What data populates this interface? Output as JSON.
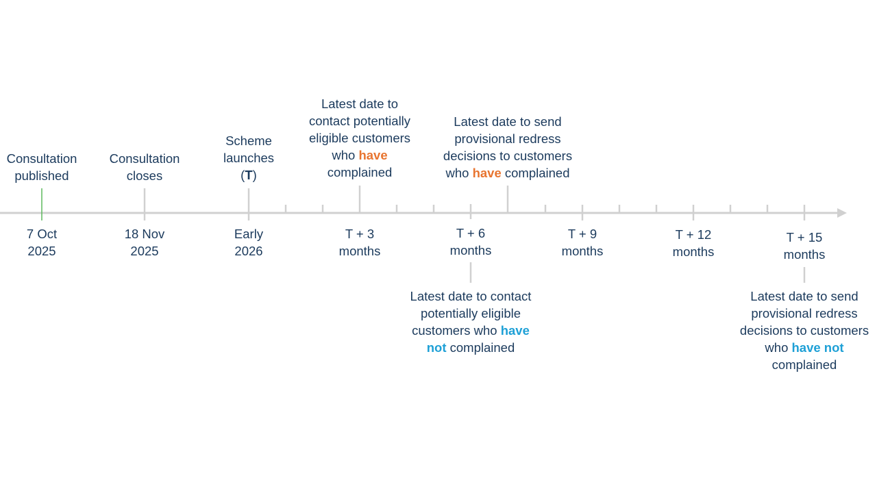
{
  "colors": {
    "text": "#1b3a5c",
    "axis": "#d0d0d0",
    "first_marker": "#5cb85c",
    "have": "#e8742f",
    "have_not": "#1ea0d6"
  },
  "timeline": [
    {
      "tick": "major",
      "marker_color": "first",
      "above": [
        [
          {
            "t": "Consultation"
          }
        ],
        [
          {
            "t": "published"
          }
        ]
      ],
      "below": [
        [
          {
            "t": "7 Oct"
          }
        ],
        [
          {
            "t": "2025"
          }
        ]
      ]
    },
    {
      "tick": "major",
      "above": [
        [
          {
            "t": "Consultation"
          }
        ],
        [
          {
            "t": "closes"
          }
        ]
      ],
      "below": [
        [
          {
            "t": "18 Nov"
          }
        ],
        [
          {
            "t": "2025"
          }
        ]
      ]
    },
    {
      "tick": "major",
      "above": [
        [
          {
            "t": "Scheme"
          }
        ],
        [
          {
            "t": "launches"
          }
        ],
        [
          {
            "t": "("
          },
          {
            "t": "T",
            "s": "k"
          },
          {
            "t": ")"
          }
        ]
      ],
      "below": [
        [
          {
            "t": "Early"
          }
        ],
        [
          {
            "t": "2026"
          }
        ]
      ]
    },
    {
      "tick": "minor"
    },
    {
      "tick": "minor"
    },
    {
      "tick": "major-up",
      "above": [
        [
          {
            "t": "Latest date to"
          }
        ],
        [
          {
            "t": "contact potentially"
          }
        ],
        [
          {
            "t": "eligible customers"
          }
        ],
        [
          {
            "t": "who "
          },
          {
            "t": "have",
            "s": "o"
          }
        ],
        [
          {
            "t": "complained"
          }
        ]
      ],
      "below": [
        [
          {
            "t": "T + 3"
          }
        ],
        [
          {
            "t": "months"
          }
        ]
      ]
    },
    {
      "tick": "minor"
    },
    {
      "tick": "minor"
    },
    {
      "tick": "major-down",
      "below": [
        [
          {
            "t": "T + 6"
          }
        ],
        [
          {
            "t": "months"
          }
        ]
      ],
      "note_below": [
        [
          {
            "t": "Latest date to contact"
          }
        ],
        [
          {
            "t": "potentially eligible"
          }
        ],
        [
          {
            "t": "customers who "
          },
          {
            "t": "have",
            "s": "b"
          }
        ],
        [
          {
            "t": "not",
            "s": "b"
          },
          {
            "t": " complained"
          }
        ]
      ]
    },
    {
      "tick": "major-up",
      "above": [
        [
          {
            "t": "Latest date to send"
          }
        ],
        [
          {
            "t": "provisional redress"
          }
        ],
        [
          {
            "t": "decisions to customers"
          }
        ],
        [
          {
            "t": "who "
          },
          {
            "t": "have",
            "s": "o"
          },
          {
            "t": " complained"
          }
        ]
      ]
    },
    {
      "tick": "minor"
    },
    {
      "tick": "major",
      "below": [
        [
          {
            "t": "T + 9"
          }
        ],
        [
          {
            "t": "months"
          }
        ]
      ]
    },
    {
      "tick": "minor"
    },
    {
      "tick": "minor"
    },
    {
      "tick": "major",
      "below": [
        [
          {
            "t": "T + 12"
          }
        ],
        [
          {
            "t": "months"
          }
        ]
      ]
    },
    {
      "tick": "minor"
    },
    {
      "tick": "minor"
    },
    {
      "tick": "major",
      "below": [
        [
          {
            "t": "T + 15"
          }
        ],
        [
          {
            "t": "months"
          }
        ]
      ],
      "note_below": [
        [
          {
            "t": "Latest date to send"
          }
        ],
        [
          {
            "t": "provisional redress"
          }
        ],
        [
          {
            "t": "decisions to customers"
          }
        ],
        [
          {
            "t": "who "
          },
          {
            "t": "have not",
            "s": "b"
          }
        ],
        [
          {
            "t": "complained"
          }
        ]
      ]
    }
  ]
}
